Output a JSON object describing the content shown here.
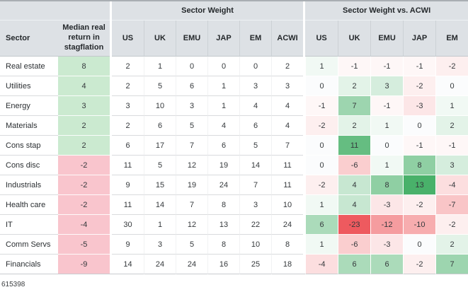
{
  "chart_data": {
    "type": "table",
    "headers": {
      "sector": "Sector",
      "median": "Median real return in stagflation",
      "weight_group": "Sector Weight",
      "vs_group": "Sector Weight vs. ACWI"
    },
    "weight_columns": [
      "US",
      "UK",
      "EMU",
      "JAP",
      "EM",
      "ACWI"
    ],
    "vs_columns": [
      "US",
      "UK",
      "EMU",
      "JAP",
      "EM"
    ],
    "rows": [
      {
        "sector": "Real estate",
        "median": 8,
        "weights": [
          2,
          1,
          0,
          0,
          0,
          2
        ],
        "vs_acwi": [
          1,
          -1,
          -1,
          -1,
          -2
        ]
      },
      {
        "sector": "Utilities",
        "median": 4,
        "weights": [
          2,
          5,
          6,
          1,
          3,
          3
        ],
        "vs_acwi": [
          0,
          2,
          3,
          -2,
          0
        ]
      },
      {
        "sector": "Energy",
        "median": 3,
        "weights": [
          3,
          10,
          3,
          1,
          4,
          4
        ],
        "vs_acwi": [
          -1,
          7,
          -1,
          -3,
          1
        ]
      },
      {
        "sector": "Materials",
        "median": 2,
        "weights": [
          2,
          6,
          5,
          4,
          6,
          4
        ],
        "vs_acwi": [
          -2,
          2,
          1,
          0,
          2
        ]
      },
      {
        "sector": "Cons stap",
        "median": 2,
        "weights": [
          6,
          17,
          7,
          6,
          5,
          7
        ],
        "vs_acwi": [
          0,
          11,
          0,
          -1,
          -1
        ]
      },
      {
        "sector": "Cons disc",
        "median": -2,
        "weights": [
          11,
          5,
          12,
          19,
          14,
          11
        ],
        "vs_acwi": [
          0,
          -6,
          1,
          8,
          3
        ]
      },
      {
        "sector": "Industrials",
        "median": -2,
        "weights": [
          9,
          15,
          19,
          24,
          7,
          11
        ],
        "vs_acwi": [
          -2,
          4,
          8,
          13,
          -4
        ]
      },
      {
        "sector": "Health care",
        "median": -2,
        "weights": [
          11,
          14,
          7,
          8,
          3,
          10
        ],
        "vs_acwi": [
          1,
          4,
          -3,
          -2,
          -7
        ]
      },
      {
        "sector": "IT",
        "median": -4,
        "weights": [
          30,
          1,
          12,
          13,
          22,
          24
        ],
        "vs_acwi": [
          6,
          -23,
          -12,
          -10,
          -2
        ]
      },
      {
        "sector": "Comm Servs",
        "median": -5,
        "weights": [
          9,
          3,
          5,
          8,
          10,
          8
        ],
        "vs_acwi": [
          1,
          -6,
          -3,
          0,
          2
        ]
      },
      {
        "sector": "Financials",
        "median": -9,
        "weights": [
          14,
          24,
          24,
          16,
          25,
          18
        ],
        "vs_acwi": [
          -4,
          6,
          6,
          -2,
          7
        ]
      }
    ],
    "heat_scale": {
      "positive_max_value": 13,
      "negative_max_value": 20,
      "zero_color": "#fbfcfd"
    }
  },
  "colors": {
    "header_bg": "#dde1e5",
    "median_positive": "#cbead0",
    "median_negative": "#f9c5cd",
    "heat_positive": "#49b16a",
    "heat_negative": "#ee5a5f"
  },
  "footnote": "615398"
}
